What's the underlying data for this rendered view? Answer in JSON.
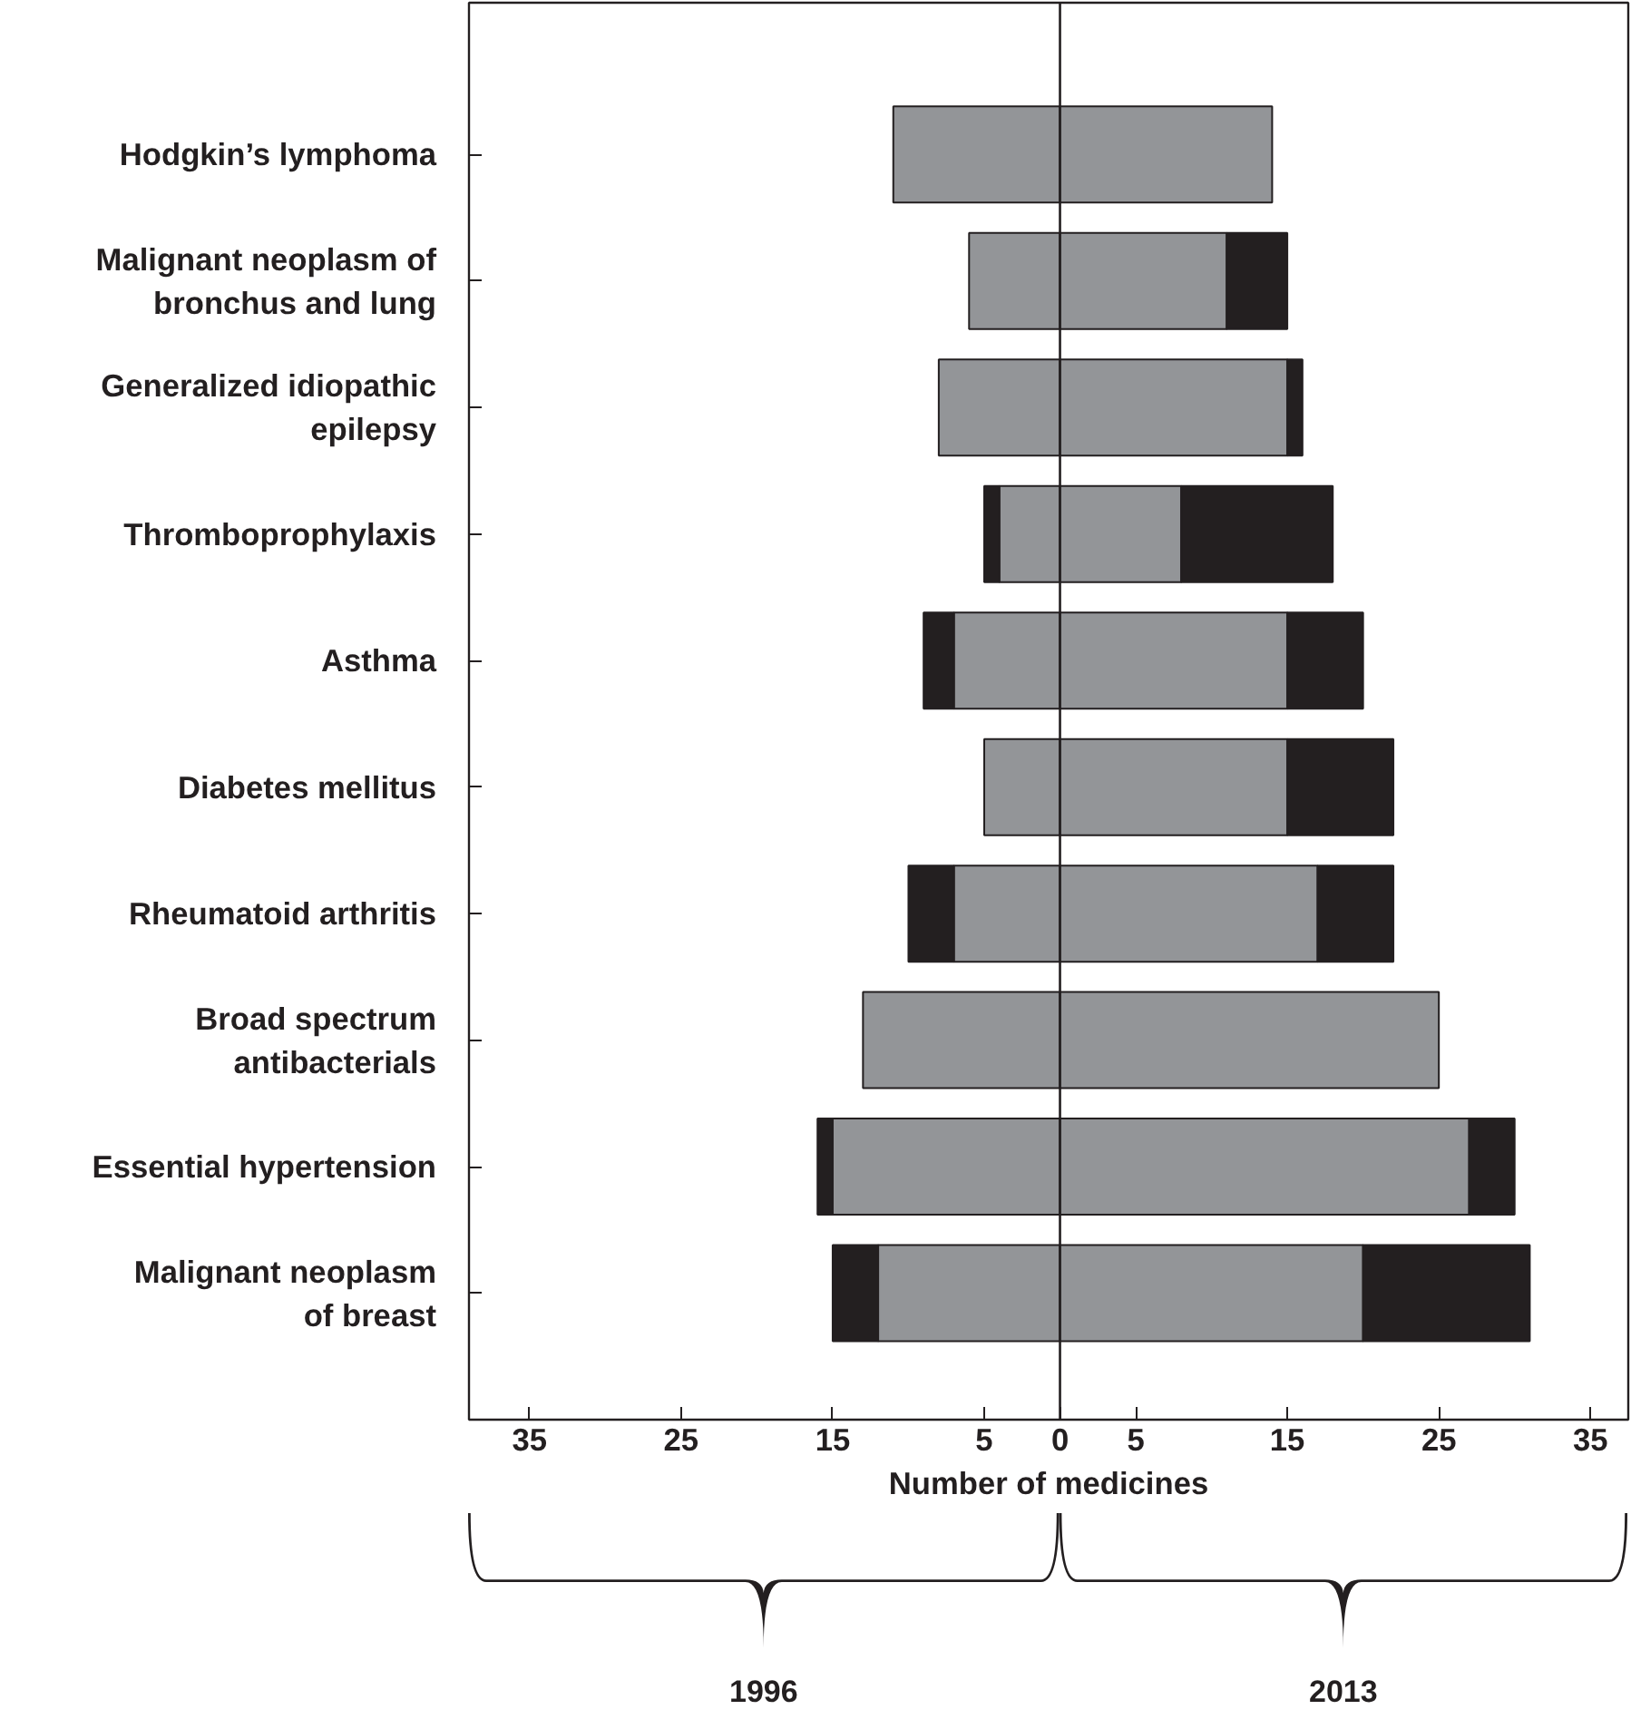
{
  "chart_data": {
    "type": "bar",
    "orientation": "horizontal",
    "stacked": true,
    "xlabel": "Number of medicines",
    "categories": [
      "Hodgkin’s lymphoma",
      "Malignant neoplasm of\nbronchus and lung",
      "Generalized idiopathic\nepilepsy",
      "Thromboprophylaxis",
      "Asthma",
      "Diabetes mellitus",
      "Rheumatoid arthritis",
      "Broad spectrum\nantibacterials",
      "Essential hypertension",
      "Malignant neoplasm\nof breast"
    ],
    "series": [
      {
        "color": "#939598",
        "values": [
          -11,
          -6,
          -8,
          -4,
          -7,
          -5,
          -7,
          -13,
          -15,
          -12
        ]
      },
      {
        "color": "#231f20",
        "values": [
          0,
          0,
          0,
          -1,
          -2,
          0,
          -3,
          0,
          -1,
          -3
        ]
      },
      {
        "color": "#939598",
        "values": [
          14,
          11,
          15,
          8,
          15,
          15,
          17,
          25,
          27,
          20
        ]
      },
      {
        "color": "#231f20",
        "values": [
          0,
          4,
          1,
          10,
          5,
          7,
          5,
          0,
          3,
          11
        ]
      }
    ],
    "xlim": [
      -39,
      37.5
    ],
    "xticks": [
      {
        "value": -35,
        "label": "35"
      },
      {
        "value": -25,
        "label": "25"
      },
      {
        "value": -15,
        "label": "15"
      },
      {
        "value": -5,
        "label": "5"
      },
      0,
      5,
      15,
      25,
      35
    ],
    "ref_lines": [
      {
        "axis": "x",
        "value": 0,
        "color": "#231f20"
      }
    ],
    "annotations": [
      "1996",
      "2013"
    ],
    "grid": false
  }
}
